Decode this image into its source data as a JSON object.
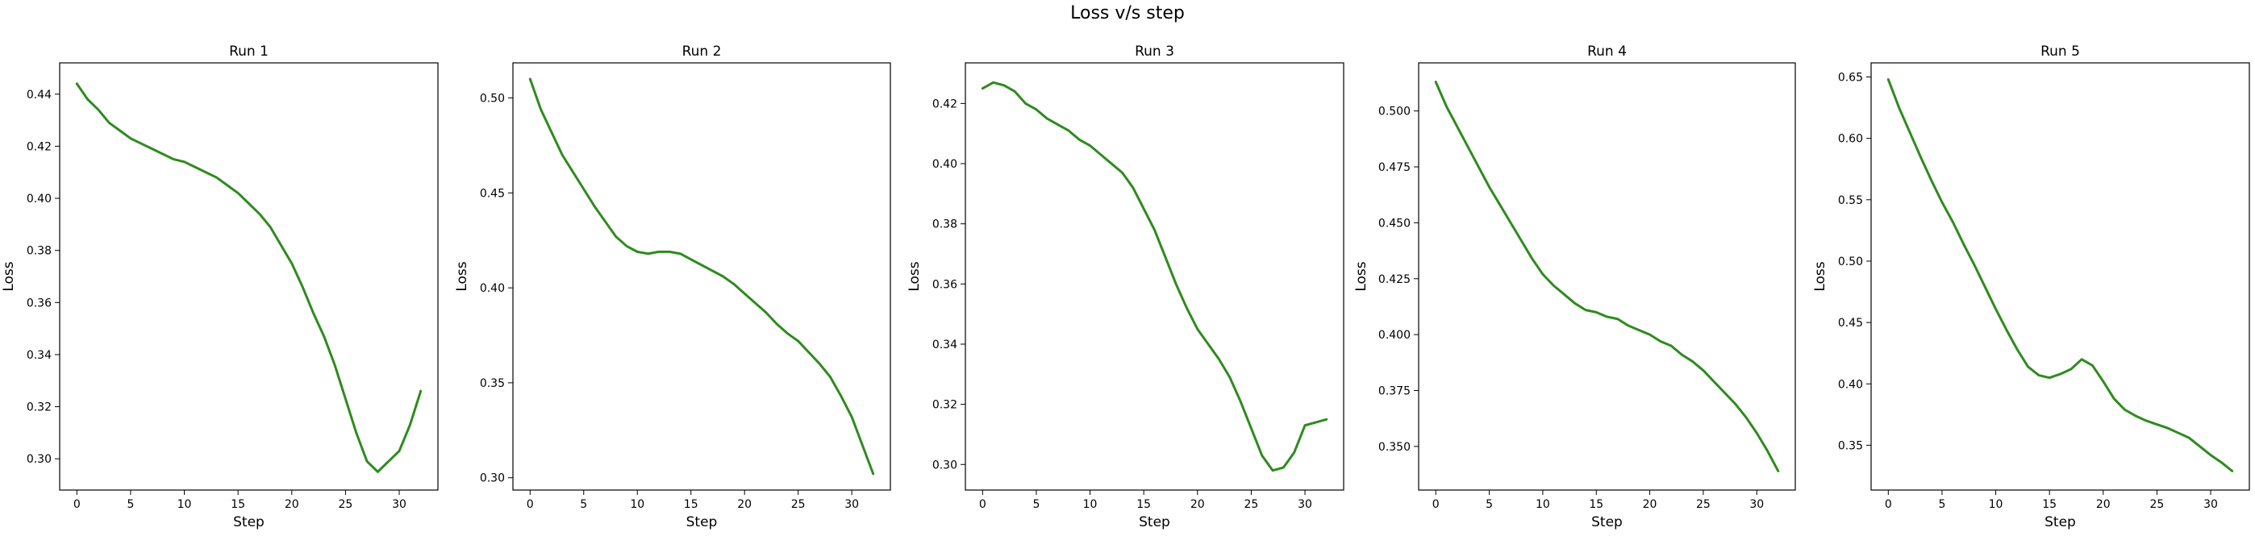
{
  "figure": {
    "suptitle": "Loss v/s step"
  },
  "colors": {
    "line": "#2e8b1e",
    "axis": "#000000",
    "background": "#ffffff"
  },
  "chart_data": [
    {
      "type": "line",
      "title": "Run 1",
      "xlabel": "Step",
      "ylabel": "Loss",
      "xlim": [
        -1.6,
        33.6
      ],
      "ylim": [
        0.288,
        0.452
      ],
      "xticks": [
        0,
        5,
        10,
        15,
        20,
        25,
        30
      ],
      "yticks": [
        0.3,
        0.32,
        0.34,
        0.36,
        0.38,
        0.4,
        0.42,
        0.44
      ],
      "ytick_decimals": 2,
      "grid": false,
      "x": [
        0,
        1,
        2,
        3,
        4,
        5,
        6,
        7,
        8,
        9,
        10,
        11,
        12,
        13,
        14,
        15,
        16,
        17,
        18,
        19,
        20,
        21,
        22,
        23,
        24,
        25,
        26,
        27,
        28,
        29,
        30,
        31,
        32
      ],
      "values": [
        0.444,
        0.438,
        0.434,
        0.429,
        0.426,
        0.423,
        0.421,
        0.419,
        0.417,
        0.415,
        0.414,
        0.412,
        0.41,
        0.408,
        0.405,
        0.402,
        0.398,
        0.394,
        0.389,
        0.382,
        0.375,
        0.366,
        0.356,
        0.347,
        0.336,
        0.323,
        0.31,
        0.299,
        0.295,
        0.299,
        0.303,
        0.313,
        0.326
      ]
    },
    {
      "type": "line",
      "title": "Run 2",
      "xlabel": "Step",
      "ylabel": "Loss",
      "xlim": [
        -1.6,
        33.6
      ],
      "ylim": [
        0.2935,
        0.5185
      ],
      "xticks": [
        0,
        5,
        10,
        15,
        20,
        25,
        30
      ],
      "yticks": [
        0.3,
        0.35,
        0.4,
        0.45,
        0.5
      ],
      "ytick_decimals": 2,
      "grid": false,
      "x": [
        0,
        1,
        2,
        3,
        4,
        5,
        6,
        7,
        8,
        9,
        10,
        11,
        12,
        13,
        14,
        15,
        16,
        17,
        18,
        19,
        20,
        21,
        22,
        23,
        24,
        25,
        26,
        27,
        28,
        29,
        30,
        31,
        32
      ],
      "values": [
        0.51,
        0.494,
        0.482,
        0.47,
        0.461,
        0.452,
        0.443,
        0.435,
        0.427,
        0.422,
        0.419,
        0.418,
        0.419,
        0.419,
        0.418,
        0.415,
        0.412,
        0.409,
        0.406,
        0.402,
        0.397,
        0.392,
        0.387,
        0.381,
        0.376,
        0.372,
        0.366,
        0.36,
        0.353,
        0.343,
        0.332,
        0.317,
        0.302
      ]
    },
    {
      "type": "line",
      "title": "Run 3",
      "xlabel": "Step",
      "ylabel": "Loss",
      "xlim": [
        -1.6,
        33.6
      ],
      "ylim": [
        0.2915,
        0.4335
      ],
      "xticks": [
        0,
        5,
        10,
        15,
        20,
        25,
        30
      ],
      "yticks": [
        0.3,
        0.32,
        0.34,
        0.36,
        0.38,
        0.4,
        0.42
      ],
      "ytick_decimals": 2,
      "grid": false,
      "x": [
        0,
        1,
        2,
        3,
        4,
        5,
        6,
        7,
        8,
        9,
        10,
        11,
        12,
        13,
        14,
        15,
        16,
        17,
        18,
        19,
        20,
        21,
        22,
        23,
        24,
        25,
        26,
        27,
        28,
        29,
        30,
        31,
        32
      ],
      "values": [
        0.425,
        0.427,
        0.426,
        0.424,
        0.42,
        0.418,
        0.415,
        0.413,
        0.411,
        0.408,
        0.406,
        0.403,
        0.4,
        0.397,
        0.392,
        0.385,
        0.378,
        0.369,
        0.36,
        0.352,
        0.345,
        0.34,
        0.335,
        0.329,
        0.321,
        0.312,
        0.303,
        0.298,
        0.299,
        0.304,
        0.313,
        0.314,
        0.315
      ]
    },
    {
      "type": "line",
      "title": "Run 4",
      "xlabel": "Step",
      "ylabel": "Loss",
      "xlim": [
        -1.6,
        33.6
      ],
      "ylim": [
        0.3305,
        0.5215
      ],
      "xticks": [
        0,
        5,
        10,
        15,
        20,
        25,
        30
      ],
      "yticks": [
        0.35,
        0.375,
        0.4,
        0.425,
        0.45,
        0.475,
        0.5
      ],
      "ytick_decimals": 3,
      "grid": false,
      "x": [
        0,
        1,
        2,
        3,
        4,
        5,
        6,
        7,
        8,
        9,
        10,
        11,
        12,
        13,
        14,
        15,
        16,
        17,
        18,
        19,
        20,
        21,
        22,
        23,
        24,
        25,
        26,
        27,
        28,
        29,
        30,
        31,
        32
      ],
      "values": [
        0.513,
        0.502,
        0.493,
        0.484,
        0.475,
        0.466,
        0.458,
        0.45,
        0.442,
        0.434,
        0.427,
        0.422,
        0.418,
        0.414,
        0.411,
        0.41,
        0.408,
        0.407,
        0.404,
        0.402,
        0.4,
        0.397,
        0.395,
        0.391,
        0.388,
        0.384,
        0.379,
        0.374,
        0.369,
        0.363,
        0.356,
        0.348,
        0.339
      ]
    },
    {
      "type": "line",
      "title": "Run 5",
      "xlabel": "Step",
      "ylabel": "Loss",
      "xlim": [
        -1.6,
        33.6
      ],
      "ylim": [
        0.3135,
        0.6615
      ],
      "xticks": [
        0,
        5,
        10,
        15,
        20,
        25,
        30
      ],
      "yticks": [
        0.35,
        0.4,
        0.45,
        0.5,
        0.55,
        0.6,
        0.65
      ],
      "ytick_decimals": 2,
      "grid": false,
      "x": [
        0,
        1,
        2,
        3,
        4,
        5,
        6,
        7,
        8,
        9,
        10,
        11,
        12,
        13,
        14,
        15,
        16,
        17,
        18,
        19,
        20,
        21,
        22,
        23,
        24,
        25,
        26,
        27,
        28,
        29,
        30,
        31,
        32
      ],
      "values": [
        0.648,
        0.625,
        0.605,
        0.585,
        0.566,
        0.548,
        0.532,
        0.514,
        0.497,
        0.479,
        0.461,
        0.444,
        0.428,
        0.414,
        0.407,
        0.405,
        0.408,
        0.412,
        0.42,
        0.415,
        0.402,
        0.388,
        0.379,
        0.374,
        0.37,
        0.367,
        0.364,
        0.36,
        0.356,
        0.349,
        0.342,
        0.336,
        0.329
      ]
    }
  ]
}
